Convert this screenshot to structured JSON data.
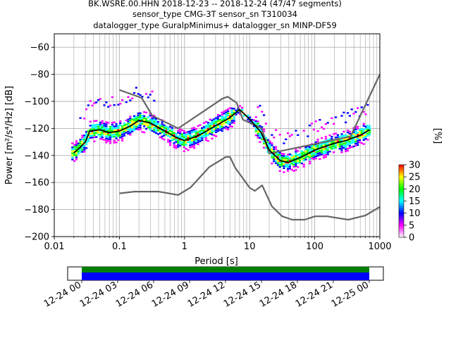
{
  "header": {
    "line1": "BK.WSRE.00.HHN   2018-12-23 -- 2018-12-24  (47/47 segments)",
    "line2": "sensor_type CMG-3T sensor_sn T310034",
    "line3": "datalogger_type GuralpMinimus+ datalogger_sn MINP-DF59"
  },
  "chart_data": [
    {
      "type": "heatmap",
      "subtype": "probabilistic power spectral density",
      "xlabel": "Period [s]",
      "ylabel": "Power [m²/s⁴/Hz] [dB]",
      "xscale": "log",
      "xlim": [
        0.01,
        1000
      ],
      "ylim": [
        -200,
        -50
      ],
      "x_ticks": [
        "0.01",
        "0.1",
        "1",
        "10",
        "100",
        "1000"
      ],
      "y_ticks": [
        "−60",
        "−80",
        "−100",
        "−120",
        "−140",
        "−160",
        "−180",
        "−200"
      ],
      "grid": true,
      "colorbar": {
        "label": "[%]",
        "range": [
          0,
          30
        ],
        "ticks": [
          "0",
          "5",
          "10",
          "15",
          "20",
          "25",
          "30"
        ],
        "colormap": [
          "#ffffff",
          "#ff00ff",
          "#0000ff",
          "#00ffff",
          "#00ff00",
          "#ffff00",
          "#ff0000"
        ]
      },
      "series": [
        {
          "kind": "mode_curve",
          "color": "#000000",
          "x": [
            0.02,
            0.025,
            0.03,
            0.035,
            0.05,
            0.07,
            0.1,
            0.15,
            0.2,
            0.3,
            0.5,
            0.7,
            1,
            1.5,
            2,
            3,
            5,
            7,
            10,
            15,
            20,
            30,
            40,
            50,
            70,
            100,
            150,
            200,
            300,
            500,
            700
          ],
          "y": [
            -138,
            -134,
            -130,
            -122,
            -121,
            -123,
            -122,
            -118,
            -114,
            -116,
            -122,
            -126,
            -129,
            -126,
            -123,
            -118,
            -112,
            -106,
            -113,
            -123,
            -136,
            -144,
            -145,
            -143,
            -140,
            -136,
            -133,
            -131,
            -129,
            -125,
            -121
          ]
        },
        {
          "kind": "noise_model_high",
          "color": "#666666",
          "x": [
            0.1,
            0.22,
            0.32,
            0.8,
            3.8,
            4.6,
            6.3,
            7.9,
            15.4,
            20,
            354.8,
            10000
          ],
          "y": [
            -91.5,
            -97.4,
            -110.5,
            -120,
            -98,
            -96.5,
            -101,
            -113.5,
            -120,
            -138.5,
            -126,
            -80
          ]
        },
        {
          "kind": "noise_model_low",
          "color": "#666666",
          "x": [
            0.1,
            0.17,
            0.4,
            0.8,
            1.24,
            2.4,
            4.3,
            5,
            6,
            10,
            12,
            15.6,
            21.9,
            31.6,
            45,
            70,
            101,
            154,
            328,
            600,
            1000
          ],
          "y": [
            -168,
            -166.7,
            -166.7,
            -169.2,
            -163.7,
            -148.6,
            -141.1,
            -141.1,
            -149,
            -163.8,
            -166.2,
            -162.1,
            -177.5,
            -185,
            -187.5,
            -187.5,
            -185,
            -185,
            -187.5,
            -184.4,
            -178
          ]
        }
      ]
    },
    {
      "type": "timeline",
      "tick_labels": [
        "12-24 00",
        "12-24 03",
        "12-24 06",
        "12-24 09",
        "12-24 12",
        "12-24 15",
        "12-24 18",
        "12-24 21",
        "12-25 00"
      ],
      "coverage_colors": [
        "#008000",
        "#0000ff"
      ]
    }
  ]
}
